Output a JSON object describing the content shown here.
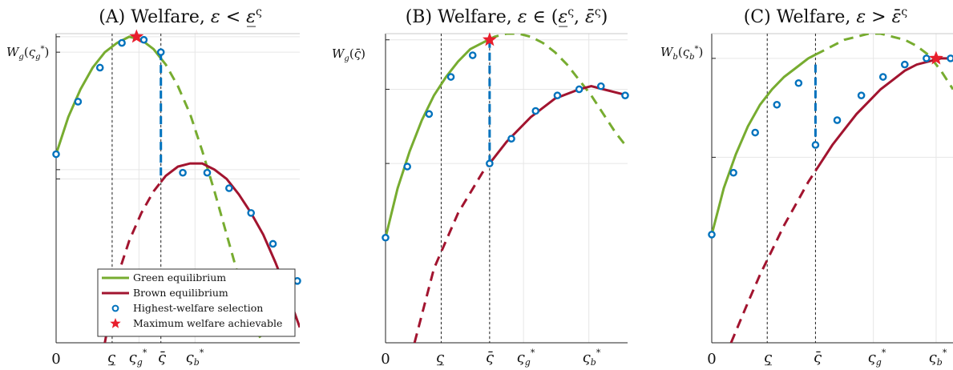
{
  "colors": {
    "green": "#77AC30",
    "brown": "#A2142F",
    "selection": "#0072BD",
    "selection_fill": "#4DBEEE",
    "star": "#E81E2C",
    "grid": "#e6e6e6",
    "axis": "#222222"
  },
  "legend": {
    "green": "Green equilibrium",
    "brown": "Brown equilibrium",
    "selection": "Highest-welfare selection",
    "star": "Maximum welfare achievable"
  },
  "chart_data": [
    {
      "type": "line",
      "title": "(A) Welfare, ε < ε̲ᶺ",
      "ylabel": "W_g(ς_g*)",
      "xlim": [
        0,
        1
      ],
      "ylim": [
        0,
        1
      ],
      "grid": true,
      "legend_position": "bottom-right",
      "xtick_labels": [
        {
          "x": 0,
          "label": "0"
        },
        {
          "x": 0.23,
          "label": "ς̲"
        },
        {
          "x": 0.34,
          "label": "ς_g*"
        },
        {
          "x": 0.43,
          "label": "ς̄"
        },
        {
          "x": 0.57,
          "label": "ς_b*"
        }
      ],
      "vlines": [
        {
          "x": 0.23,
          "style": "dotted"
        },
        {
          "x": 0.43,
          "style": "dotted"
        }
      ],
      "transition": {
        "x": 0.43,
        "from": 0.94,
        "to": 0.53
      },
      "series": [
        {
          "name": "Green equilibrium",
          "solid_range": [
            0,
            0.43
          ],
          "x": [
            0,
            0.05,
            0.1,
            0.15,
            0.2,
            0.25,
            0.3,
            0.35,
            0.4,
            0.45,
            0.5,
            0.55,
            0.6,
            0.65,
            0.7,
            0.75,
            0.8,
            0.85
          ],
          "y": [
            0.61,
            0.73,
            0.82,
            0.89,
            0.94,
            0.97,
            0.99,
            0.98,
            0.95,
            0.9,
            0.83,
            0.74,
            0.62,
            0.49,
            0.35,
            0.21,
            0.07,
            0.0
          ]
        },
        {
          "name": "Brown equilibrium",
          "solid_range": [
            0.43,
            1
          ],
          "x": [
            0.2,
            0.25,
            0.3,
            0.35,
            0.4,
            0.45,
            0.5,
            0.55,
            0.6,
            0.65,
            0.7,
            0.75,
            0.8,
            0.85,
            0.9,
            0.95,
            1.0
          ],
          "y": [
            0.0,
            0.21,
            0.33,
            0.42,
            0.49,
            0.54,
            0.57,
            0.58,
            0.58,
            0.56,
            0.53,
            0.48,
            0.42,
            0.35,
            0.26,
            0.16,
            0.05
          ]
        },
        {
          "name": "Highest-welfare selection",
          "x": [
            0,
            0.09,
            0.18,
            0.27,
            0.36,
            0.43,
            0.52,
            0.62,
            0.71,
            0.8,
            0.89,
            0.99
          ],
          "y": [
            0.61,
            0.78,
            0.89,
            0.97,
            0.98,
            0.94,
            0.55,
            0.55,
            0.5,
            0.42,
            0.32,
            0.2
          ]
        },
        {
          "name": "Maximum welfare achievable",
          "x": [
            0.33
          ],
          "y": [
            0.99
          ]
        }
      ]
    },
    {
      "type": "line",
      "title": "(B) Welfare, ε ∈ (ε̲ᶺ, ε̄ᶺ)",
      "ylabel": "W_g(ς̄)",
      "xlim": [
        0,
        1
      ],
      "ylim": [
        0,
        1
      ],
      "grid": true,
      "xtick_labels": [
        {
          "x": 0,
          "label": "0"
        },
        {
          "x": 0.23,
          "label": "ς̲"
        },
        {
          "x": 0.43,
          "label": "ς̄"
        },
        {
          "x": 0.57,
          "label": "ς_g*"
        },
        {
          "x": 0.84,
          "label": "ς_b*"
        }
      ],
      "vlines": [
        {
          "x": 0.23,
          "style": "dotted"
        },
        {
          "x": 0.43,
          "style": "dotted"
        }
      ],
      "transition": {
        "x": 0.43,
        "from": 0.98,
        "to": 0.58
      },
      "series": [
        {
          "name": "Green equilibrium",
          "solid_range": [
            0,
            0.43
          ],
          "x": [
            0,
            0.05,
            0.1,
            0.15,
            0.2,
            0.25,
            0.3,
            0.35,
            0.4,
            0.45,
            0.5,
            0.55,
            0.6,
            0.65,
            0.7,
            0.75,
            0.8,
            0.85,
            0.9,
            0.95,
            1.0
          ],
          "y": [
            0.34,
            0.5,
            0.62,
            0.72,
            0.8,
            0.86,
            0.91,
            0.95,
            0.97,
            0.99,
            1.0,
            1.0,
            0.99,
            0.97,
            0.94,
            0.9,
            0.85,
            0.8,
            0.74,
            0.68,
            0.63
          ]
        },
        {
          "name": "Brown equilibrium",
          "solid_range": [
            0.43,
            1
          ],
          "x": [
            0.12,
            0.2,
            0.3,
            0.4,
            0.5,
            0.6,
            0.7,
            0.8,
            0.85,
            0.9,
            1.0
          ],
          "y": [
            0.0,
            0.24,
            0.42,
            0.55,
            0.65,
            0.73,
            0.79,
            0.82,
            0.83,
            0.82,
            0.8
          ]
        },
        {
          "name": "Highest-welfare selection",
          "x": [
            0,
            0.09,
            0.18,
            0.27,
            0.36,
            0.43,
            0.52,
            0.62,
            0.71,
            0.8,
            0.89,
            0.99
          ],
          "y": [
            0.34,
            0.57,
            0.74,
            0.86,
            0.93,
            0.58,
            0.66,
            0.75,
            0.8,
            0.82,
            0.83,
            0.8
          ]
        },
        {
          "name": "Maximum welfare achievable",
          "x": [
            0.43
          ],
          "y": [
            0.98
          ]
        }
      ]
    },
    {
      "type": "line",
      "title": "(C) Welfare, ε > ε̄ᶺ",
      "ylabel": "W_b(ς_b*)",
      "xlim": [
        0,
        1
      ],
      "ylim": [
        0,
        1
      ],
      "grid": true,
      "xtick_labels": [
        {
          "x": 0,
          "label": "0"
        },
        {
          "x": 0.23,
          "label": "ς̲"
        },
        {
          "x": 0.43,
          "label": "ς̄"
        },
        {
          "x": 0.67,
          "label": "ς_g*"
        },
        {
          "x": 0.93,
          "label": "ς_b*"
        }
      ],
      "vlines": [
        {
          "x": 0.23,
          "style": "dotted"
        },
        {
          "x": 0.43,
          "style": "dotted"
        }
      ],
      "transition": {
        "x": 0.43,
        "from": 0.9,
        "to": 0.64
      },
      "series": [
        {
          "name": "Green equilibrium",
          "solid_range": [
            0,
            0.43
          ],
          "x": [
            0,
            0.05,
            0.1,
            0.15,
            0.2,
            0.25,
            0.3,
            0.35,
            0.4,
            0.45,
            0.5,
            0.55,
            0.6,
            0.65,
            0.7,
            0.75,
            0.8,
            0.85,
            0.9,
            0.95,
            1.0
          ],
          "y": [
            0.35,
            0.5,
            0.61,
            0.7,
            0.77,
            0.82,
            0.86,
            0.89,
            0.92,
            0.94,
            0.96,
            0.98,
            0.99,
            1.0,
            1.0,
            0.99,
            0.98,
            0.96,
            0.93,
            0.88,
            0.82
          ]
        },
        {
          "name": "Brown equilibrium",
          "solid_range": [
            0.43,
            1
          ],
          "x": [
            0.08,
            0.15,
            0.2,
            0.25,
            0.3,
            0.35,
            0.4,
            0.45,
            0.5,
            0.55,
            0.6,
            0.65,
            0.7,
            0.75,
            0.8,
            0.85,
            0.9,
            0.95,
            1.0
          ],
          "y": [
            0.0,
            0.13,
            0.22,
            0.3,
            0.38,
            0.45,
            0.52,
            0.58,
            0.64,
            0.69,
            0.74,
            0.78,
            0.82,
            0.85,
            0.88,
            0.9,
            0.91,
            0.92,
            0.92
          ]
        },
        {
          "name": "Highest-welfare selection",
          "x": [
            0,
            0.09,
            0.18,
            0.27,
            0.36,
            0.43,
            0.52,
            0.62,
            0.71,
            0.8,
            0.89,
            0.99
          ],
          "y": [
            0.35,
            0.55,
            0.68,
            0.77,
            0.84,
            0.64,
            0.72,
            0.8,
            0.86,
            0.9,
            0.92,
            0.92
          ]
        },
        {
          "name": "Maximum welfare achievable",
          "x": [
            0.93
          ],
          "y": [
            0.92
          ]
        }
      ]
    }
  ]
}
